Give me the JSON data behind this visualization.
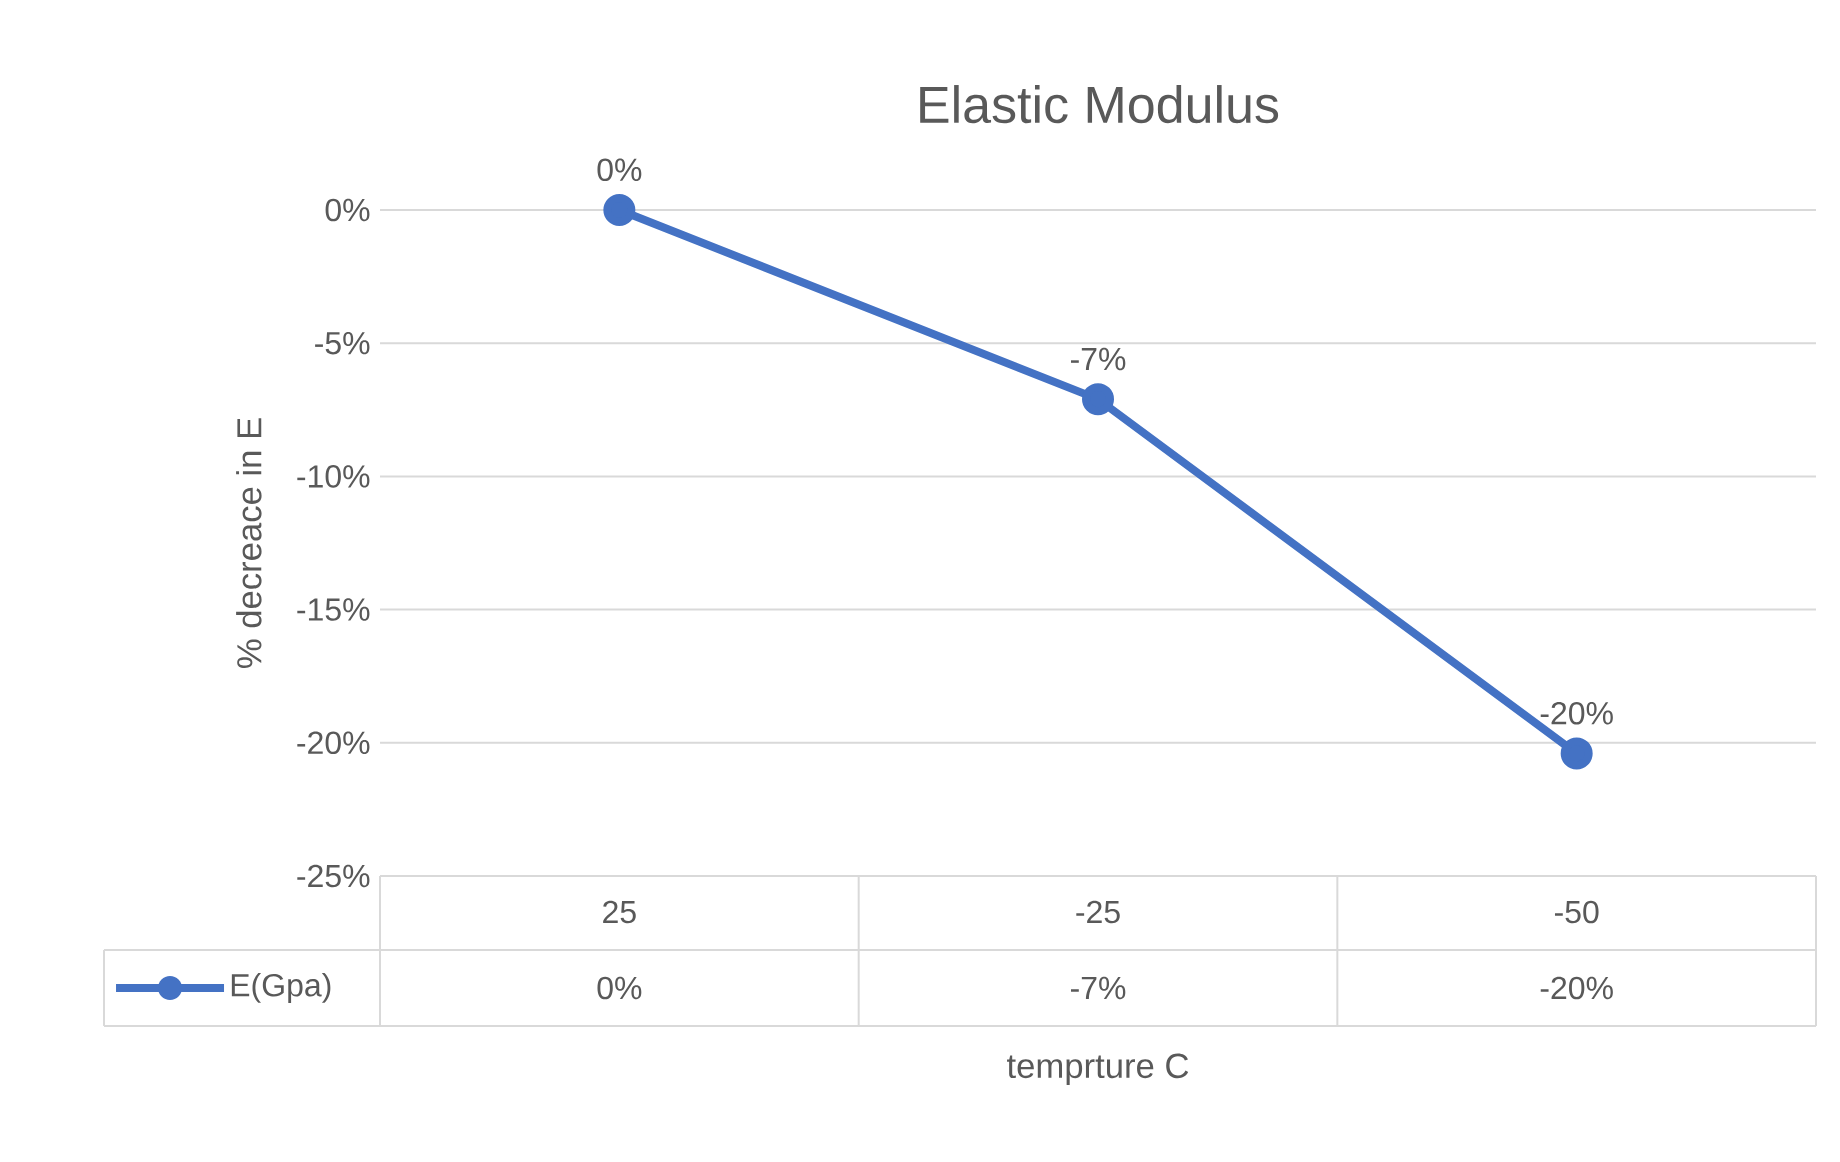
{
  "chart_data": {
    "type": "line",
    "title": "Elastic Modulus",
    "xlabel": "temprture C",
    "ylabel": "% decreace in E",
    "categories": [
      "25",
      "-25",
      "-50"
    ],
    "series": [
      {
        "name": "E(Gpa)",
        "color": "#4472c4",
        "values": [
          0,
          -7.1,
          -20.4
        ],
        "value_labels": [
          "0%",
          "-7%",
          "-20%"
        ]
      }
    ],
    "ylim": [
      -25,
      0
    ],
    "yticks": [
      {
        "value": 0,
        "label": "0%"
      },
      {
        "value": -5,
        "label": "-5%"
      },
      {
        "value": -10,
        "label": "-10%"
      },
      {
        "value": -15,
        "label": "-15%"
      },
      {
        "value": -20,
        "label": "-20%"
      },
      {
        "value": -25,
        "label": "-25%"
      }
    ],
    "grid": "y",
    "legend": "bottom left",
    "marker": "circle",
    "line_style": "solid"
  }
}
